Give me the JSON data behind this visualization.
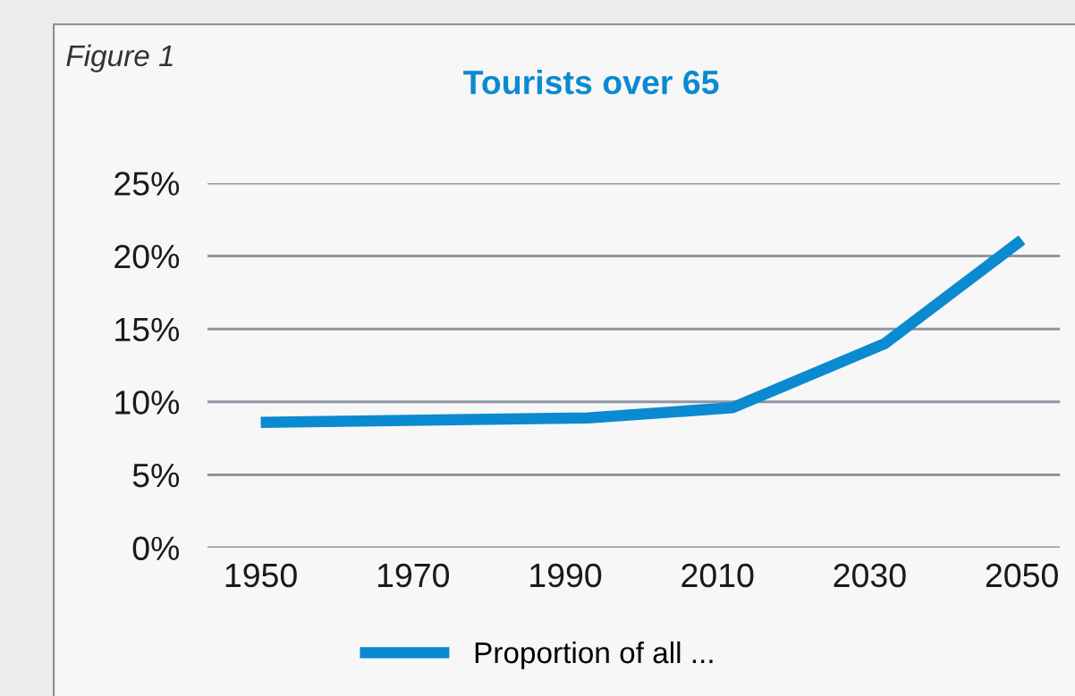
{
  "chart_data": {
    "type": "line",
    "title": "Tourists over 65",
    "annotations": [
      "Figure 1"
    ],
    "x": [
      1950,
      1993,
      2012,
      2032,
      2050
    ],
    "series": [
      {
        "name": "Proportion of all ...",
        "color": "#0a8ad0",
        "values": [
          8.6,
          8.9,
          9.6,
          14.0,
          21.1
        ]
      }
    ],
    "xlim": [
      1943,
      2055
    ],
    "xticks": [
      1950,
      1970,
      1990,
      2010,
      2030,
      2050
    ],
    "ylim": [
      0,
      25
    ],
    "yticks": [
      {
        "value": 0,
        "label": "0%"
      },
      {
        "value": 5,
        "label": "5%"
      },
      {
        "value": 10,
        "label": "10%"
      },
      {
        "value": 15,
        "label": "15%"
      },
      {
        "value": 20,
        "label": "20%"
      },
      {
        "value": 25,
        "label": "25%"
      }
    ],
    "grid": "y",
    "legend": "bottom",
    "marker": "none",
    "line_style": "solid"
  }
}
